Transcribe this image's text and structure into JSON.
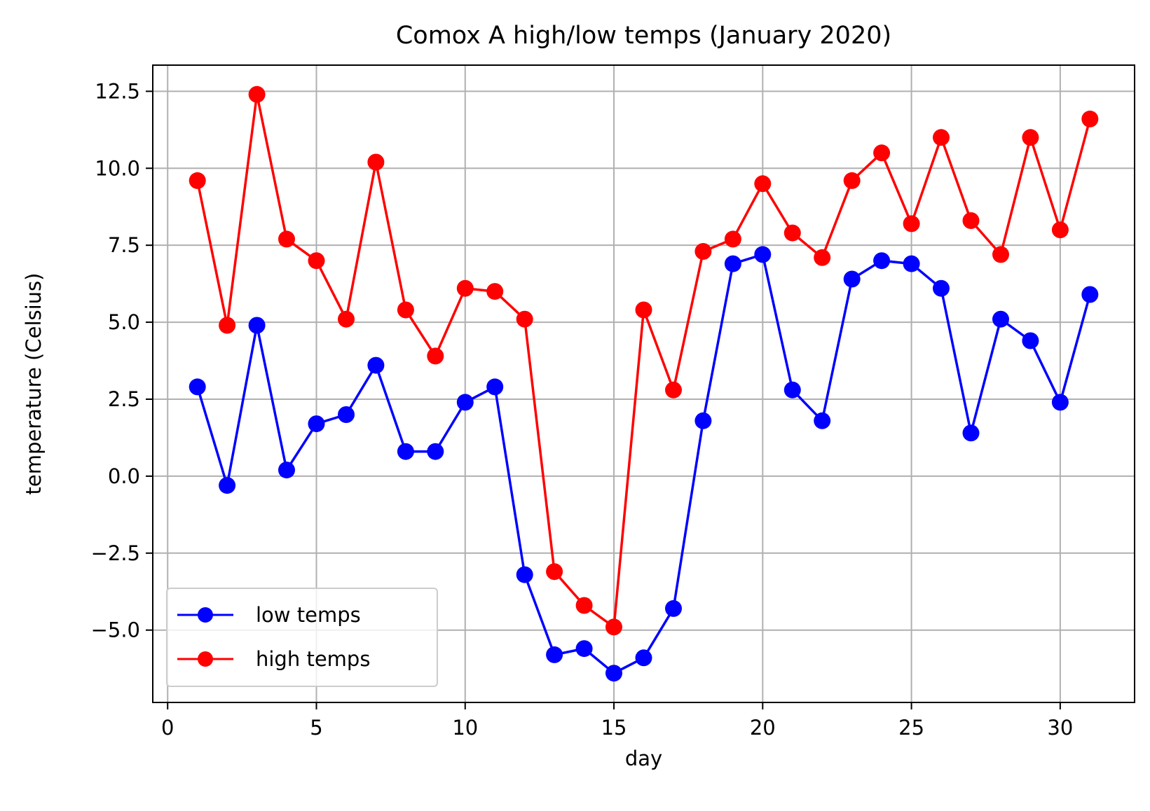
{
  "chart_data": {
    "type": "line",
    "title": "Comox A high/low temps (January 2020)",
    "xlabel": "day",
    "ylabel": "temperature (Celsius)",
    "xlim": [
      -0.5,
      32.5
    ],
    "ylim": [
      -7.35,
      13.35
    ],
    "xticks": [
      0,
      5,
      10,
      15,
      20,
      25,
      30
    ],
    "xtick_labels": [
      "0",
      "5",
      "10",
      "15",
      "20",
      "25",
      "30"
    ],
    "yticks": [
      -5.0,
      -2.5,
      0.0,
      2.5,
      5.0,
      7.5,
      10.0,
      12.5
    ],
    "ytick_labels": [
      "−5.0",
      "−2.5",
      "0.0",
      "2.5",
      "5.0",
      "7.5",
      "10.0",
      "12.5"
    ],
    "grid": true,
    "legend_position": "lower-left",
    "x": [
      1,
      2,
      3,
      4,
      5,
      6,
      7,
      8,
      9,
      10,
      11,
      12,
      13,
      14,
      15,
      16,
      17,
      18,
      19,
      20,
      21,
      22,
      23,
      24,
      25,
      26,
      27,
      28,
      29,
      30,
      31
    ],
    "series": [
      {
        "name": "low temps",
        "color": "#0000ff",
        "marker": "circle",
        "values": [
          2.9,
          -0.3,
          4.9,
          0.2,
          1.7,
          2.0,
          3.6,
          0.8,
          0.8,
          2.4,
          2.9,
          -3.2,
          -5.8,
          -5.6,
          -6.4,
          -5.9,
          -4.3,
          1.8,
          6.9,
          7.2,
          2.8,
          1.8,
          6.4,
          7.0,
          6.9,
          6.1,
          1.4,
          5.1,
          4.4,
          2.4,
          5.9
        ]
      },
      {
        "name": "high temps",
        "color": "#ff0000",
        "marker": "circle",
        "values": [
          9.6,
          4.9,
          12.4,
          7.7,
          7.0,
          5.1,
          10.2,
          5.4,
          3.9,
          6.1,
          6.0,
          5.1,
          -3.1,
          -4.2,
          -4.9,
          5.4,
          2.8,
          7.3,
          7.7,
          9.5,
          7.9,
          7.1,
          9.6,
          10.5,
          8.2,
          11.0,
          8.3,
          7.2,
          11.0,
          8.0,
          11.6
        ]
      }
    ]
  }
}
